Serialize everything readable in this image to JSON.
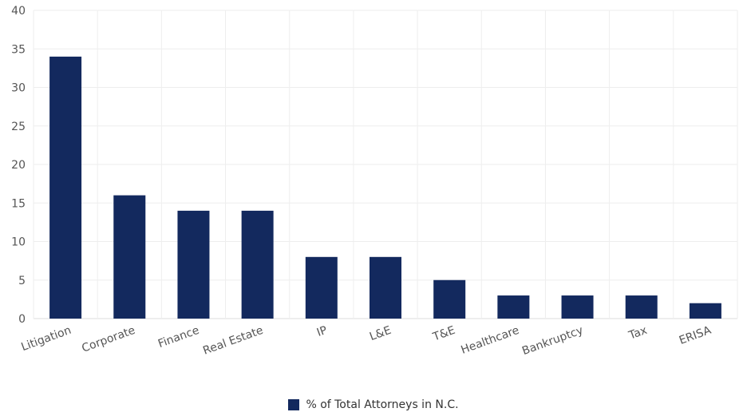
{
  "chart_data": {
    "type": "bar",
    "categories": [
      "Litigation",
      "Corporate",
      "Finance",
      "Real Estate",
      "IP",
      "L&E",
      "T&E",
      "Healthcare",
      "Bankruptcy",
      "Tax",
      "ERISA"
    ],
    "series": [
      {
        "name": "% of Total Attorneys in N.C.",
        "values": [
          34,
          16,
          14,
          14,
          8,
          8,
          5,
          3,
          3,
          3,
          2
        ]
      }
    ],
    "ylim": [
      0,
      40
    ],
    "yticks": [
      0,
      5,
      10,
      15,
      20,
      25,
      30,
      35,
      40
    ],
    "grid": true,
    "legend_position": "bottom",
    "title": "",
    "xlabel": "",
    "ylabel": "",
    "colors": {
      "bar": "#13295e",
      "grid": "#eeeeee",
      "axis": "#dddddd"
    }
  },
  "legend": {
    "label": "% of Total Attorneys in N.C."
  }
}
